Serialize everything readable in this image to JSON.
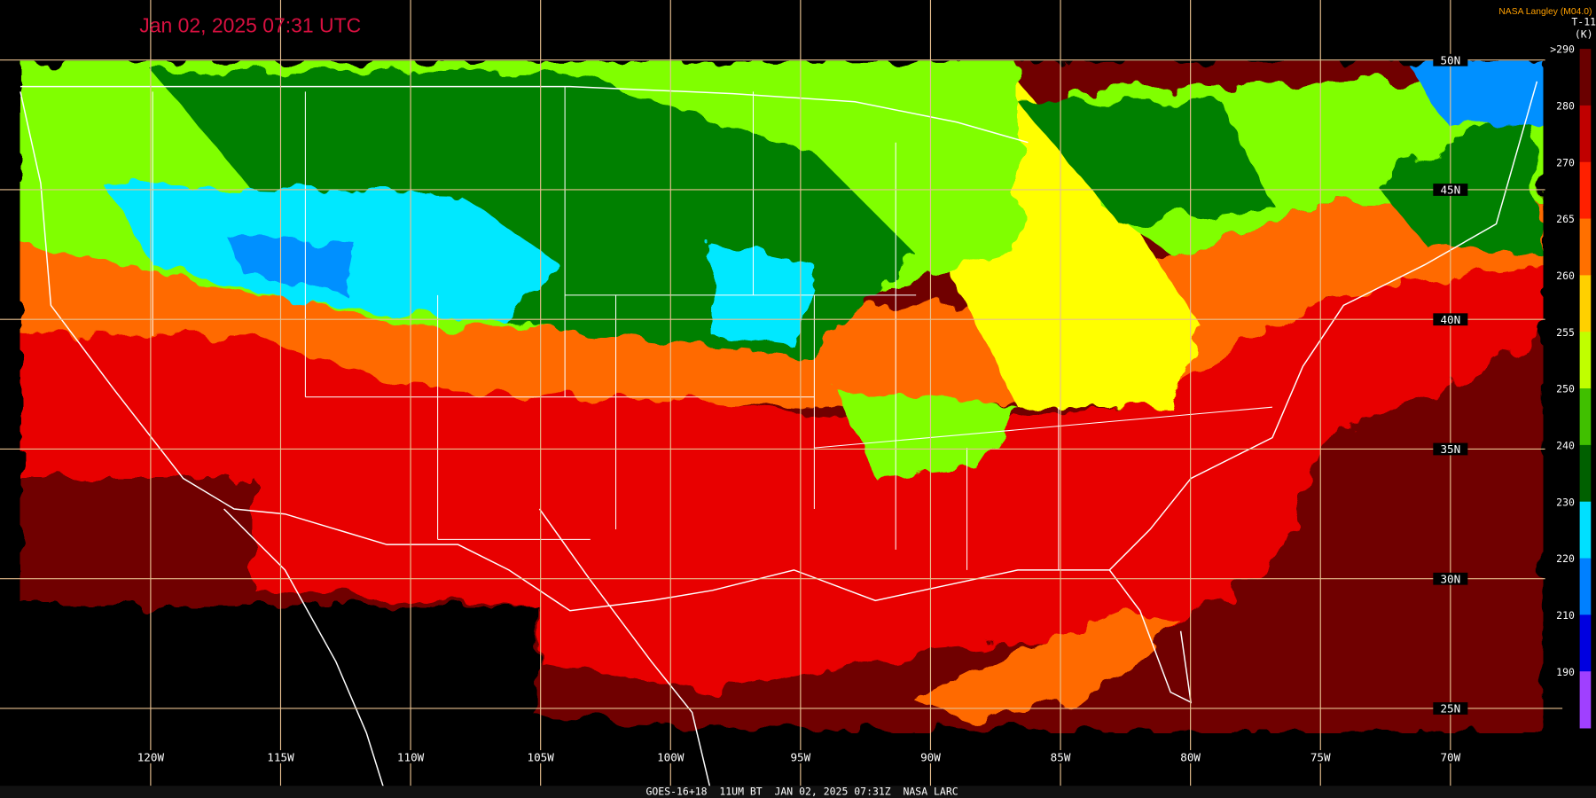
{
  "header": {
    "title": "Jan 02, 2025 07:31 UTC",
    "credit": "NASA Langley (M04.0)"
  },
  "colorbar": {
    "product": "T-11",
    "unit": "(K)",
    "labels": [
      ">290",
      "280",
      "270",
      "265",
      "260",
      "255",
      "250",
      "240",
      "230",
      "220",
      "210",
      "190"
    ]
  },
  "grid": {
    "latitudes": [
      "50N",
      "45N",
      "40N",
      "35N",
      "30N",
      "25N"
    ],
    "longitudes": [
      "120W",
      "115W",
      "110W",
      "105W",
      "100W",
      "95W",
      "90W",
      "85W",
      "80W",
      "75W",
      "70W"
    ]
  },
  "footer": {
    "caption": "GOES-16+18  11UM BT  JAN 02, 2025 07:31Z  NASA LARC"
  }
}
